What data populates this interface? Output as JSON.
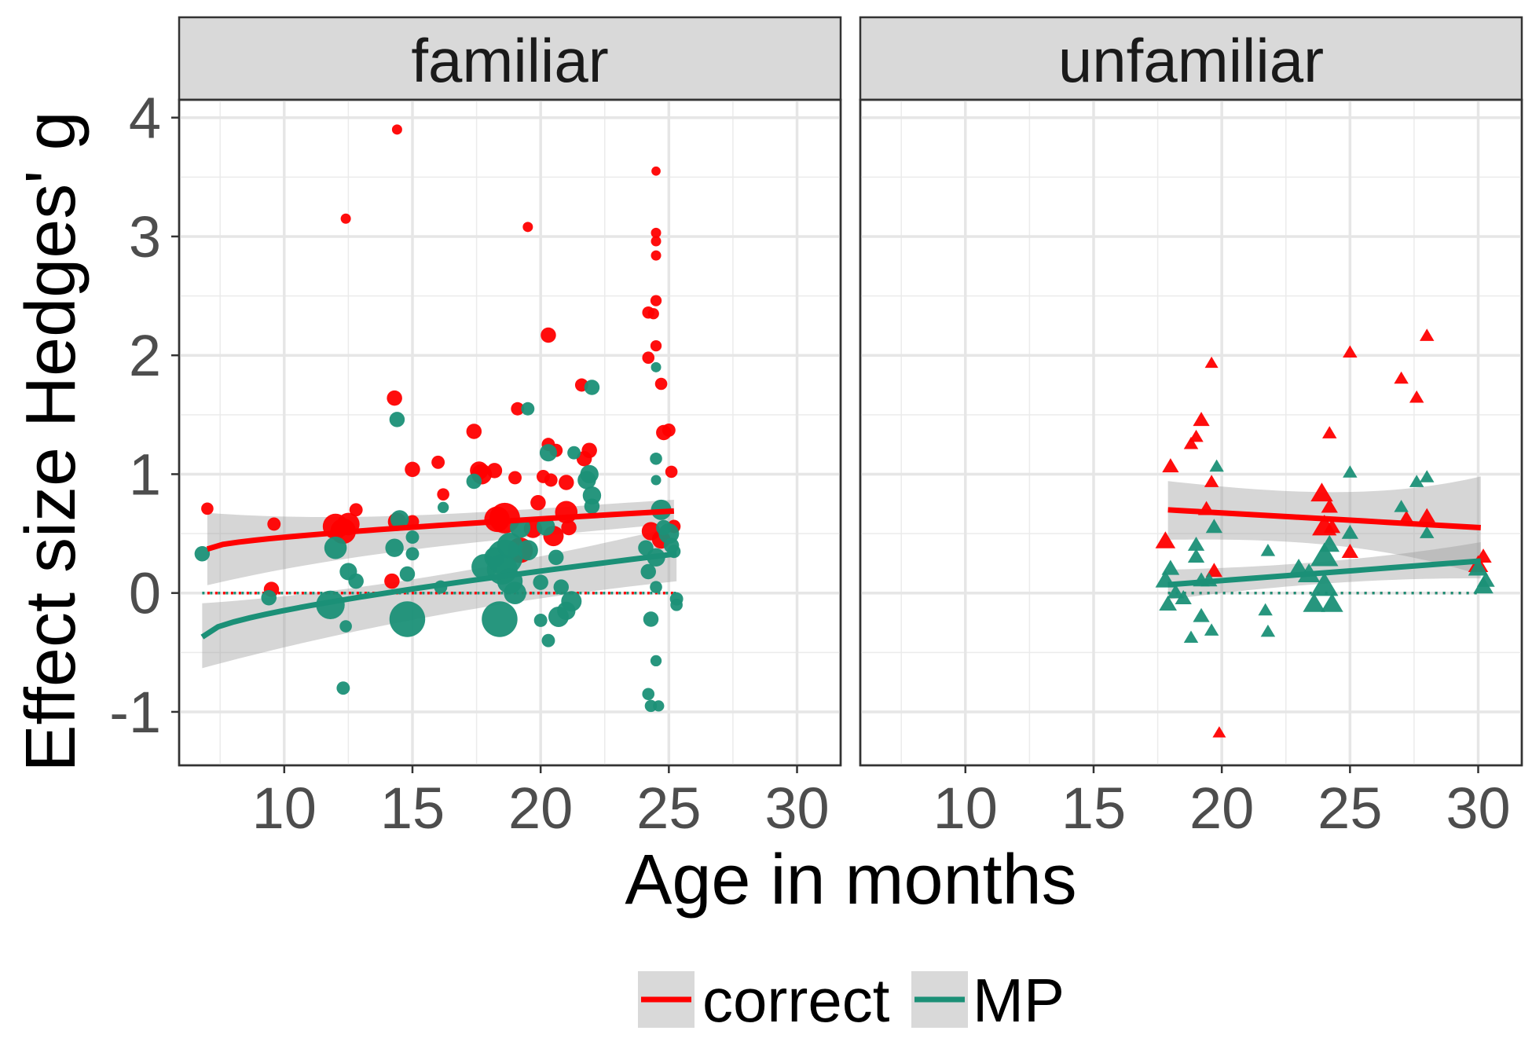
{
  "chart_data": {
    "type": "scatter",
    "facets": [
      "familiar",
      "unfamiliar"
    ],
    "xlabel": "Age in months",
    "ylabel": "Effect size Hedges' g",
    "xlim": [
      5.9,
      31.7
    ],
    "ylim": [
      -1.45,
      4.15
    ],
    "x_ticks": [
      10,
      15,
      20,
      25,
      30
    ],
    "y_ticks": [
      -1,
      0,
      1,
      2,
      3,
      4
    ],
    "x_tick_labels": [
      "10",
      "15",
      "20",
      "25",
      "30"
    ],
    "y_tick_labels": [
      "-1",
      "0",
      "1",
      "2",
      "3",
      "4"
    ],
    "grid": true,
    "legend_position": "bottom",
    "series": [
      {
        "name": "correct",
        "color": "#ff0000",
        "points": {
          "familiar": [
            [
              7.0,
              0.71,
              1.2
            ],
            [
              9.5,
              0.03,
              1.5
            ],
            [
              9.6,
              0.58,
              1.3
            ],
            [
              12.0,
              0.56,
              2.5
            ],
            [
              12.3,
              0.52,
              2.5
            ],
            [
              12.5,
              0.58,
              2.2
            ],
            [
              12.4,
              3.15,
              1.0
            ],
            [
              12.8,
              0.7,
              1.3
            ],
            [
              14.4,
              3.9,
              1.0
            ],
            [
              14.3,
              1.64,
              1.5
            ],
            [
              14.2,
              0.1,
              1.5
            ],
            [
              14.4,
              0.6,
              1.8
            ],
            [
              15.0,
              1.04,
              1.5
            ],
            [
              15.0,
              0.6,
              1.3
            ],
            [
              16.0,
              1.1,
              1.3
            ],
            [
              16.2,
              0.83,
              1.2
            ],
            [
              17.4,
              1.36,
              1.5
            ],
            [
              17.6,
              1.03,
              1.8
            ],
            [
              17.7,
              1.0,
              2.0
            ],
            [
              18.2,
              1.03,
              1.5
            ],
            [
              18.3,
              0.62,
              2.5
            ],
            [
              18.6,
              0.63,
              3.0
            ],
            [
              19.0,
              0.97,
              1.3
            ],
            [
              19.1,
              1.55,
              1.3
            ],
            [
              19.2,
              0.36,
              2.5
            ],
            [
              19.5,
              3.08,
              1.0
            ],
            [
              19.7,
              0.54,
              1.8
            ],
            [
              19.9,
              0.76,
              1.5
            ],
            [
              20.1,
              0.98,
              1.3
            ],
            [
              20.3,
              2.17,
              1.5
            ],
            [
              20.3,
              1.25,
              1.3
            ],
            [
              20.4,
              0.95,
              1.3
            ],
            [
              20.5,
              0.48,
              2.0
            ],
            [
              20.6,
              1.2,
              1.3
            ],
            [
              21.0,
              0.68,
              2.2
            ],
            [
              21.0,
              0.93,
              1.5
            ],
            [
              21.1,
              0.55,
              1.5
            ],
            [
              21.6,
              1.75,
              1.3
            ],
            [
              21.7,
              1.13,
              1.5
            ],
            [
              21.9,
              1.2,
              1.5
            ],
            [
              24.2,
              2.36,
              1.2
            ],
            [
              24.2,
              1.98,
              1.2
            ],
            [
              24.4,
              2.35,
              1.1
            ],
            [
              24.5,
              3.55,
              0.9
            ],
            [
              24.5,
              3.03,
              1.0
            ],
            [
              24.5,
              2.96,
              1.0
            ],
            [
              24.5,
              2.84,
              1.0
            ],
            [
              24.5,
              2.46,
              1.1
            ],
            [
              24.5,
              2.08,
              1.1
            ],
            [
              24.7,
              1.76,
              1.2
            ],
            [
              24.3,
              0.52,
              1.8
            ],
            [
              24.8,
              1.35,
              1.5
            ],
            [
              25.0,
              1.37,
              1.3
            ],
            [
              25.1,
              1.02,
              1.2
            ],
            [
              25.2,
              0.56,
              1.3
            ],
            [
              24.7,
              0.45,
              1.8
            ]
          ],
          "unfamiliar": [
            [
              17.8,
              0.43,
              1.8
            ],
            [
              18.0,
              1.06,
              1.5
            ],
            [
              18.8,
              1.25,
              1.3
            ],
            [
              19.0,
              1.31,
              1.3
            ],
            [
              19.2,
              1.45,
              1.5
            ],
            [
              19.4,
              0.7,
              1.5
            ],
            [
              19.6,
              0.93,
              1.3
            ],
            [
              19.6,
              1.93,
              1.2
            ],
            [
              19.7,
              0.18,
              1.5
            ],
            [
              19.9,
              -1.18,
              1.2
            ],
            [
              23.9,
              0.83,
              2.0
            ],
            [
              24.0,
              0.55,
              2.2
            ],
            [
              24.2,
              0.72,
              1.5
            ],
            [
              24.2,
              1.34,
              1.3
            ],
            [
              24.3,
              0.55,
              1.5
            ],
            [
              25.0,
              2.02,
              1.3
            ],
            [
              25.0,
              0.34,
              1.5
            ],
            [
              27.0,
              1.8,
              1.3
            ],
            [
              27.6,
              1.64,
              1.3
            ],
            [
              28.0,
              2.16,
              1.3
            ],
            [
              27.2,
              0.62,
              1.5
            ],
            [
              28.0,
              0.64,
              1.5
            ],
            [
              30.0,
              0.23,
              1.8
            ],
            [
              30.2,
              0.3,
              1.5
            ]
          ]
        },
        "trend": {
          "familiar": {
            "x": [
              7.0,
              25.2
            ],
            "y": [
              0.37,
              0.69
            ],
            "ci_low": [
              0.08,
              0.59
            ],
            "ci_high": [
              0.66,
              0.78
            ]
          },
          "unfamiliar": {
            "x": [
              17.9,
              30.1
            ],
            "y": [
              0.7,
              0.55
            ],
            "ci_low": [
              0.46,
              0.17
            ],
            "ci_high": [
              0.93,
              0.96
            ]
          }
        }
      },
      {
        "name": "MP",
        "color": "#1b9077",
        "points": {
          "familiar": [
            [
              6.8,
              0.33,
              1.5
            ],
            [
              9.4,
              -0.04,
              1.5
            ],
            [
              11.8,
              -0.1,
              2.8
            ],
            [
              12.0,
              0.38,
              2.2
            ],
            [
              12.3,
              -0.8,
              1.3
            ],
            [
              12.4,
              -0.28,
              1.2
            ],
            [
              12.5,
              0.18,
              1.7
            ],
            [
              12.8,
              0.1,
              1.5
            ],
            [
              14.4,
              1.46,
              1.5
            ],
            [
              14.3,
              0.38,
              1.8
            ],
            [
              14.5,
              0.62,
              1.8
            ],
            [
              14.8,
              -0.22,
              3.5
            ],
            [
              14.8,
              0.16,
              1.5
            ],
            [
              15.0,
              0.47,
              1.3
            ],
            [
              15.0,
              0.33,
              1.3
            ],
            [
              16.1,
              0.05,
              1.3
            ],
            [
              16.2,
              0.72,
              1.1
            ],
            [
              17.4,
              0.94,
              1.5
            ],
            [
              17.8,
              0.22,
              2.5
            ],
            [
              18.2,
              0.3,
              2.0
            ],
            [
              18.4,
              -0.22,
              3.5
            ],
            [
              18.5,
              0.2,
              3.0
            ],
            [
              18.6,
              0.3,
              3.5
            ],
            [
              18.8,
              0.1,
              2.5
            ],
            [
              18.8,
              0.4,
              2.5
            ],
            [
              19.0,
              0.0,
              2.2
            ],
            [
              19.2,
              0.55,
              2.0
            ],
            [
              19.5,
              1.55,
              1.3
            ],
            [
              19.5,
              0.36,
              2.0
            ],
            [
              20.0,
              0.09,
              1.5
            ],
            [
              20.0,
              -0.23,
              1.3
            ],
            [
              20.2,
              0.56,
              1.8
            ],
            [
              20.3,
              -0.4,
              1.3
            ],
            [
              20.3,
              1.18,
              1.7
            ],
            [
              20.6,
              0.3,
              1.5
            ],
            [
              20.7,
              -0.2,
              2.0
            ],
            [
              20.8,
              0.05,
              1.5
            ],
            [
              21.0,
              -0.15,
              1.8
            ],
            [
              21.2,
              -0.07,
              2.0
            ],
            [
              21.3,
              1.18,
              1.3
            ],
            [
              21.8,
              0.95,
              1.8
            ],
            [
              21.9,
              1.0,
              1.8
            ],
            [
              22.0,
              0.82,
              1.8
            ],
            [
              22.0,
              1.73,
              1.5
            ],
            [
              22.0,
              0.73,
              1.5
            ],
            [
              24.1,
              0.38,
              1.5
            ],
            [
              24.2,
              0.18,
              1.5
            ],
            [
              24.2,
              -0.85,
              1.2
            ],
            [
              24.3,
              -0.22,
              1.5
            ],
            [
              24.3,
              -0.95,
              1.2
            ],
            [
              24.5,
              1.9,
              1.0
            ],
            [
              24.5,
              1.13,
              1.2
            ],
            [
              24.5,
              0.95,
              1.0
            ],
            [
              24.5,
              0.05,
              1.2
            ],
            [
              24.5,
              0.3,
              1.8
            ],
            [
              24.5,
              -0.57,
              1.1
            ],
            [
              24.6,
              -0.95,
              1.1
            ],
            [
              24.7,
              0.7,
              2.0
            ],
            [
              24.8,
              0.55,
              1.5
            ],
            [
              25.0,
              0.5,
              2.0
            ],
            [
              25.1,
              0.4,
              1.5
            ],
            [
              25.2,
              0.35,
              1.3
            ],
            [
              25.3,
              -0.05,
              1.3
            ],
            [
              25.3,
              -0.1,
              1.2
            ]
          ],
          "unfamiliar": [
            [
              17.8,
              0.1,
              1.8
            ],
            [
              17.9,
              -0.1,
              1.6
            ],
            [
              18.0,
              0.2,
              1.6
            ],
            [
              18.2,
              0.0,
              1.5
            ],
            [
              18.5,
              -0.05,
              1.5
            ],
            [
              18.8,
              -0.38,
              1.3
            ],
            [
              19.0,
              0.4,
              1.5
            ],
            [
              19.0,
              0.3,
              1.5
            ],
            [
              19.2,
              0.1,
              1.5
            ],
            [
              19.2,
              -0.2,
              1.5
            ],
            [
              19.5,
              0.1,
              1.5
            ],
            [
              19.6,
              -0.32,
              1.3
            ],
            [
              19.7,
              0.55,
              1.5
            ],
            [
              19.8,
              1.06,
              1.3
            ],
            [
              21.7,
              -0.15,
              1.3
            ],
            [
              21.8,
              -0.33,
              1.3
            ],
            [
              21.8,
              0.35,
              1.3
            ],
            [
              23.0,
              0.2,
              1.8
            ],
            [
              23.4,
              0.15,
              2.0
            ],
            [
              23.6,
              -0.1,
              2.0
            ],
            [
              24.0,
              0.05,
              2.5
            ],
            [
              24.0,
              0.3,
              2.5
            ],
            [
              24.2,
              0.4,
              1.8
            ],
            [
              24.3,
              -0.1,
              2.0
            ],
            [
              25.0,
              0.5,
              1.5
            ],
            [
              25.0,
              1.01,
              1.3
            ],
            [
              27.0,
              0.72,
              1.3
            ],
            [
              27.6,
              0.93,
              1.3
            ],
            [
              28.0,
              0.97,
              1.3
            ],
            [
              28.0,
              0.5,
              1.3
            ],
            [
              30.0,
              0.2,
              1.8
            ],
            [
              30.2,
              0.05,
              1.8
            ],
            [
              30.3,
              0.1,
              1.6
            ]
          ]
        },
        "trend": {
          "familiar": {
            "x": [
              6.8,
              25.3
            ],
            "y": [
              -0.37,
              0.33
            ],
            "ci_low": [
              -0.62,
              0.11
            ],
            "ci_high": [
              -0.1,
              0.55
            ]
          },
          "unfamiliar": {
            "x": [
              17.9,
              30.1
            ],
            "y": [
              0.07,
              0.27
            ],
            "ci_low": [
              -0.05,
              0.13
            ],
            "ci_high": [
              0.19,
              0.42
            ]
          }
        }
      }
    ]
  }
}
